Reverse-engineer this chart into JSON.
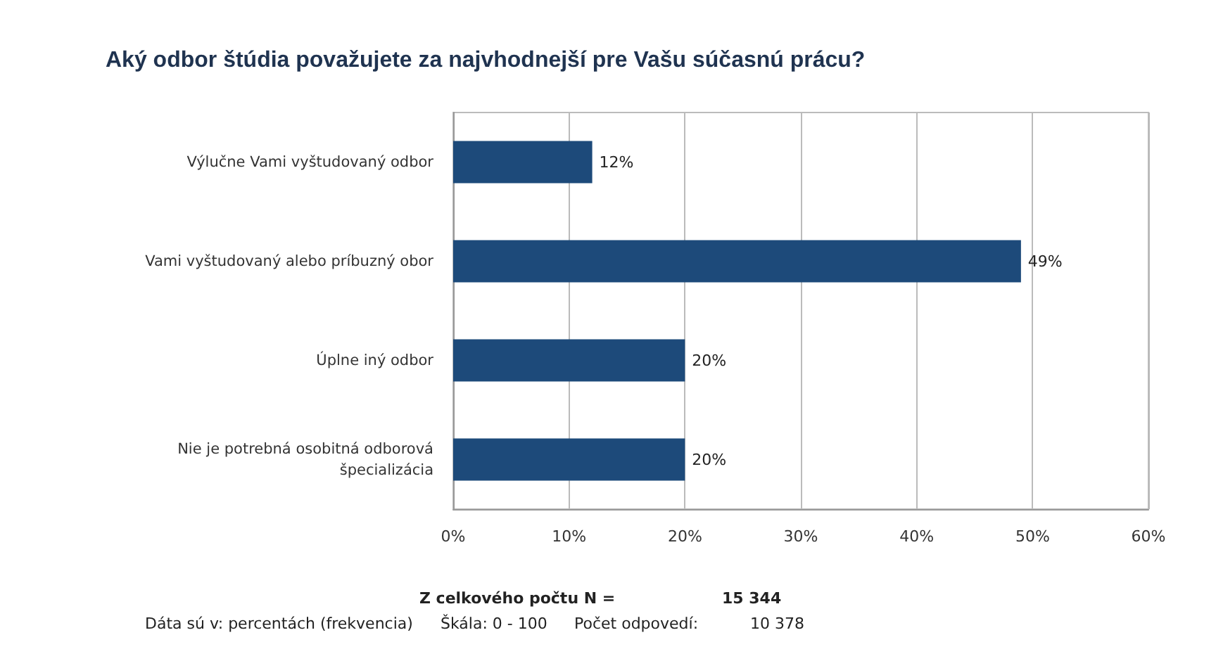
{
  "chart_data": {
    "type": "bar",
    "orientation": "horizontal",
    "title": "Aký odbor štúdia považujete za najvhodnejší pre Vašu súčasnú prácu?",
    "categories": [
      "Výlučne Vami vyštudovaný odbor",
      "Vami vyštudovaný alebo príbuzný obor",
      "Úplne iný odbor",
      "Nie je potrebná osobitná odborová\nšpecializácia"
    ],
    "values": [
      12,
      49,
      20,
      20
    ],
    "color": "#1d4a7a",
    "value_labels": [
      "12%",
      "49%",
      "20%",
      "20%"
    ],
    "xlim": [
      0,
      60
    ],
    "xticks": [
      {
        "value": 0,
        "label": "0%"
      },
      {
        "value": 10,
        "label": "10%"
      },
      {
        "value": 20,
        "label": "20%"
      },
      {
        "value": 30,
        "label": "30%"
      },
      {
        "value": 40,
        "label": "40%"
      },
      {
        "value": 50,
        "label": "50%"
      },
      {
        "value": 60,
        "label": "60%"
      }
    ],
    "grid": "x",
    "annotations": [
      "Z celkového počtu N =",
      "15 344",
      "Dáta sú v: percentách (frekvencia)",
      "Škála: 0 - 100",
      "Počet odpovedí:",
      "10 378"
    ]
  }
}
